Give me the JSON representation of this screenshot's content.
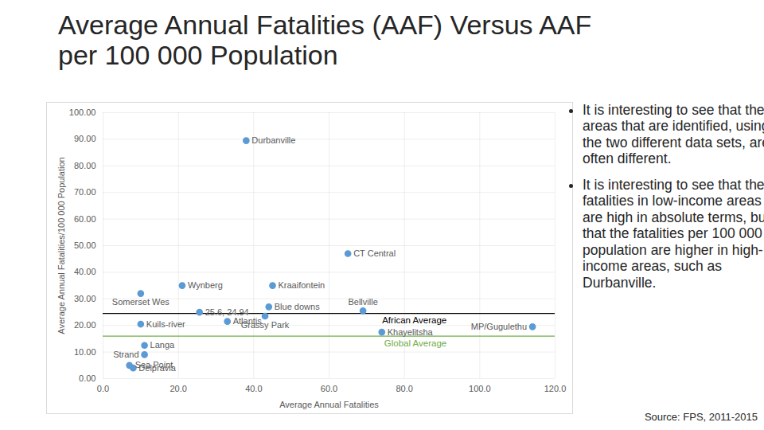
{
  "chart_data": {
    "type": "scatter",
    "title": "Average Annual Fatalities (AAF) Versus AAF per 100 000 Population",
    "x_label": "Average Annual Fatalities",
    "y_label": "Average Annual Fatalities/100 000 Population",
    "point_labels": [
      "Durbanville",
      "CT Central",
      "Wynberg",
      "Kraaifontein",
      "Somerset Wes",
      "Blue downs",
      "Bellville",
      "25.6, 24.94",
      "Grassy Park",
      "Atlantis",
      "Kuils-river",
      "Khayelitsha",
      "MP/Gugulethu",
      "Langa",
      "Strand",
      "Sea Point",
      "Delpravia"
    ],
    "x": [
      38,
      65,
      21,
      45,
      10,
      44,
      69,
      25.6,
      43,
      33,
      10,
      74,
      114,
      11,
      11,
      7,
      8
    ],
    "values": [
      89.5,
      47,
      35,
      35,
      32,
      27,
      25.5,
      24.94,
      23.5,
      21.5,
      20.5,
      17.5,
      19.5,
      12.5,
      9,
      5,
      4
    ],
    "color": "#5b9bd5",
    "marker": "circle",
    "reference_lines": [
      {
        "name": "African Average",
        "value": 24.5,
        "color": "#000000"
      },
      {
        "name": "Global Average",
        "value": 16,
        "color": "#70ad47"
      }
    ],
    "xlim": [
      0,
      120
    ],
    "xticks": [
      {
        "value": 0,
        "label": "0.0"
      },
      {
        "value": 20,
        "label": "20.0"
      },
      {
        "value": 40,
        "label": "40.0"
      },
      {
        "value": 60,
        "label": "60.0"
      },
      {
        "value": 80,
        "label": "80.0"
      },
      {
        "value": 100,
        "label": "100.0"
      },
      {
        "value": 120,
        "label": "120.0"
      }
    ],
    "ylim": [
      0,
      100
    ],
    "yticks": [
      {
        "value": 0,
        "label": "0.00"
      },
      {
        "value": 10,
        "label": "10.00"
      },
      {
        "value": 20,
        "label": "20.00"
      },
      {
        "value": 30,
        "label": "30.00"
      },
      {
        "value": 40,
        "label": "40.00"
      },
      {
        "value": 50,
        "label": "50.00"
      },
      {
        "value": 60,
        "label": "60.00"
      },
      {
        "value": 70,
        "label": "70.00"
      },
      {
        "value": 80,
        "label": "80.00"
      },
      {
        "value": 90,
        "label": "90.00"
      },
      {
        "value": 100,
        "label": "100.00"
      }
    ],
    "grid": true
  },
  "bullets": [
    "It is interesting to see that the areas that are identified, using the two different data sets, are often different.",
    "It is interesting to see that the fatalities in low-income areas are high in absolute terms, but that the fatalities per 100 000 population are higher in high-income areas, such as Durbanville."
  ],
  "source": "Source: FPS, 2011-2015"
}
